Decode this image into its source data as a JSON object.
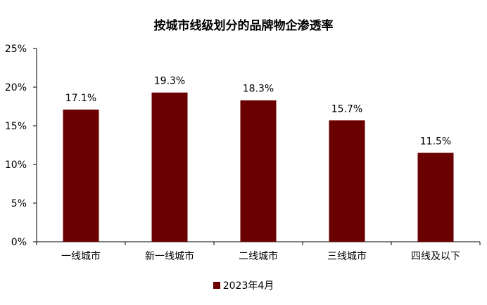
{
  "chart_data": {
    "type": "bar",
    "title": "按城市线级划分的品牌物企渗透率",
    "categories": [
      "一线城市",
      "新一线城市",
      "二线城市",
      "三线城市",
      "四线及以下"
    ],
    "series": [
      {
        "name": "2023年4月",
        "values": [
          17.1,
          19.3,
          18.3,
          15.7,
          11.5
        ],
        "color": "#6b0000"
      }
    ],
    "data_labels": [
      "17.1%",
      "19.3%",
      "18.3%",
      "15.7%",
      "11.5%"
    ],
    "yticks": [
      "0%",
      "5%",
      "10%",
      "15%",
      "20%",
      "25%"
    ],
    "ylim": [
      0,
      25
    ],
    "xlabel": "",
    "ylabel": "",
    "grid": false,
    "legend_position": "bottom"
  }
}
